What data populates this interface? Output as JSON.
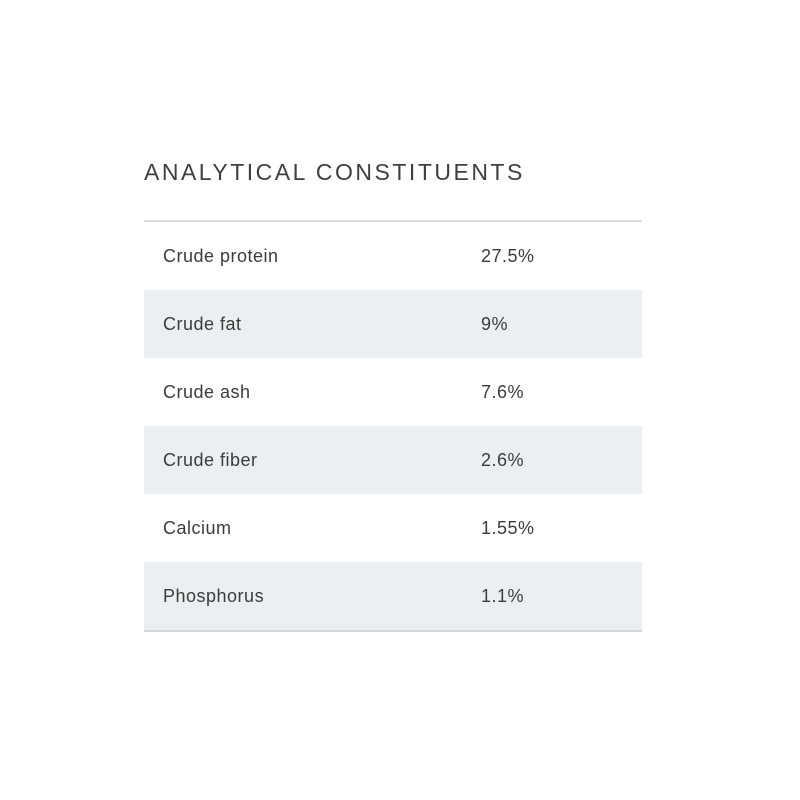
{
  "section": {
    "title": "ANALYTICAL CONSTITUENTS"
  },
  "table": {
    "rows": [
      {
        "label": "Crude protein",
        "value": "27.5%"
      },
      {
        "label": "Crude fat",
        "value": "9%"
      },
      {
        "label": "Crude ash",
        "value": "7.6%"
      },
      {
        "label": "Crude fiber",
        "value": "2.6%"
      },
      {
        "label": "Calcium",
        "value": "1.55%"
      },
      {
        "label": "Phosphorus",
        "value": "1.1%"
      }
    ],
    "colors": {
      "alt_row": "#eceff1",
      "text": "#3b3b3b",
      "title": "#3f3f3f",
      "divider": "#dadbdc",
      "bottom_border": "#d4d7d9",
      "background": "#ffffff"
    }
  }
}
